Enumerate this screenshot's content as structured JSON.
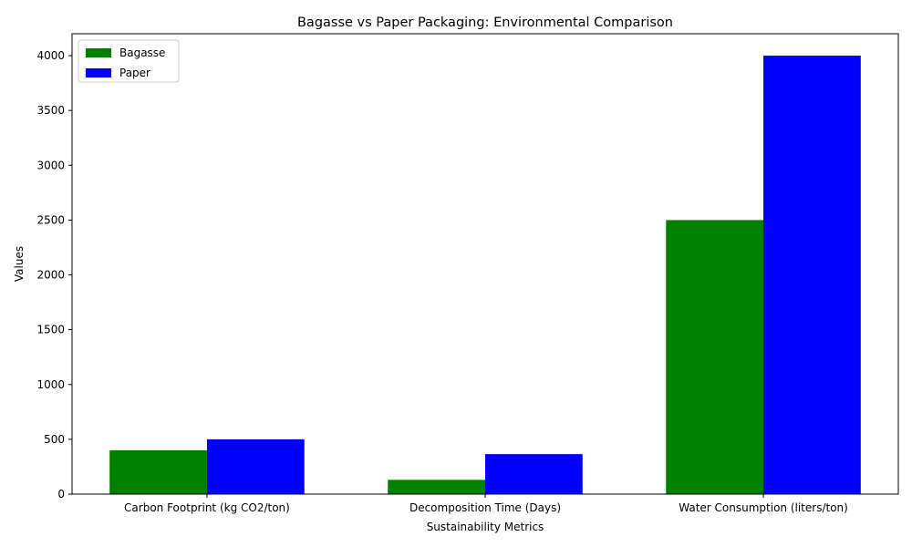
{
  "chart_data": {
    "type": "bar",
    "title": "Bagasse vs Paper Packaging: Environmental Comparison",
    "xlabel": "Sustainability Metrics",
    "ylabel": "Values",
    "categories": [
      "Carbon Footprint (kg CO2/ton)",
      "Decomposition Time (Days)",
      "Water Consumption (liters/ton)"
    ],
    "series": [
      {
        "name": "Bagasse",
        "color": "#008000",
        "values": [
          400,
          130,
          2500
        ]
      },
      {
        "name": "Paper",
        "color": "#0000ff",
        "values": [
          500,
          365,
          4000
        ]
      }
    ],
    "ylim": [
      0,
      4200
    ],
    "yticks": [
      0,
      500,
      1000,
      1500,
      2000,
      2500,
      3000,
      3500,
      4000
    ],
    "grid": false,
    "legend_position": "top-left"
  }
}
